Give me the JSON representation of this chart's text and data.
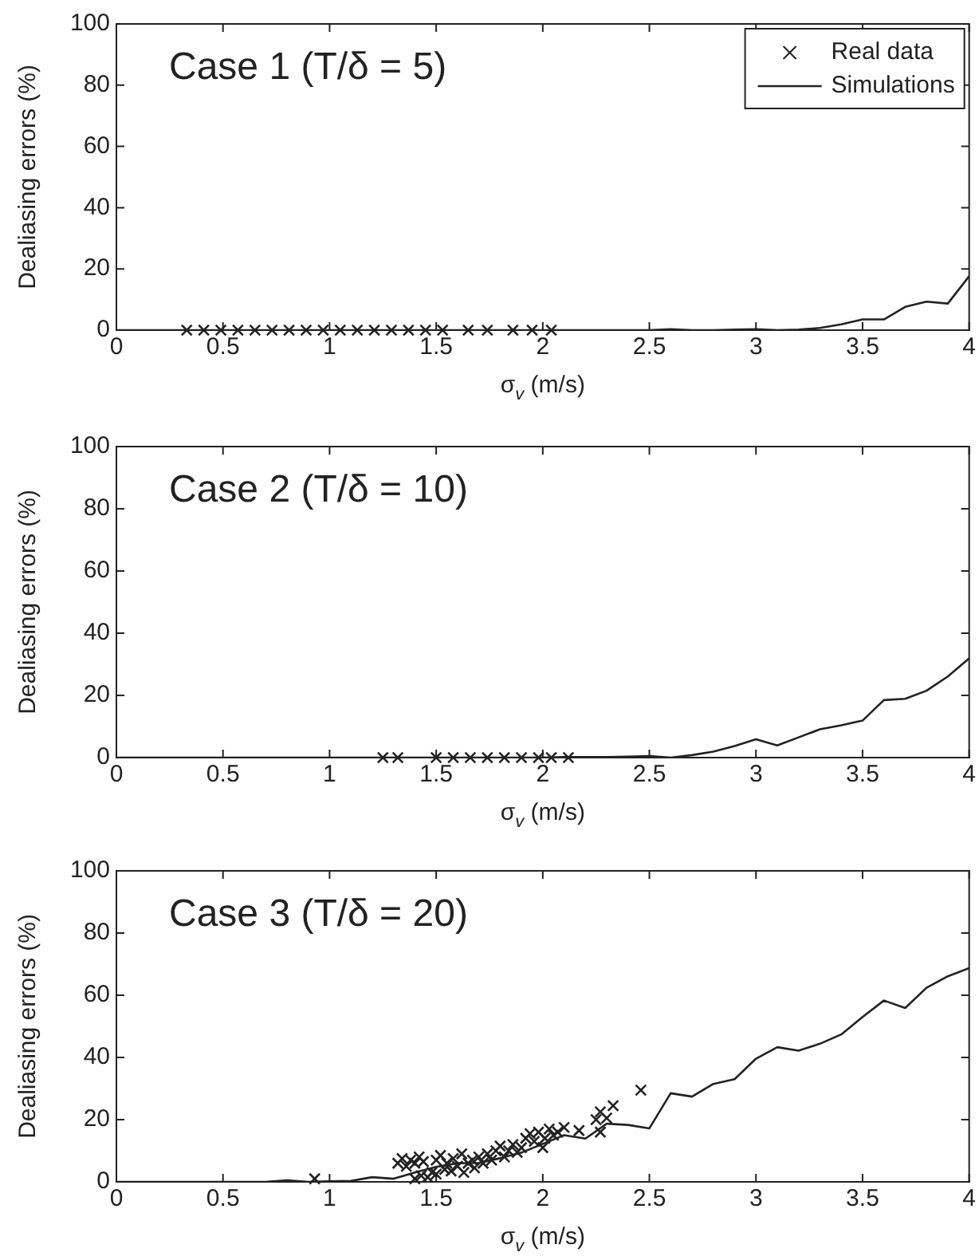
{
  "chart_data": [
    {
      "type": "scatter",
      "title": "Case 1 (T/δ = 5)",
      "xlabel": "σ$_{v}$ (m/s)",
      "ylabel": "Dealiasing errors (%)",
      "xlim": [
        0,
        4
      ],
      "xticks": [
        0,
        0.5,
        1,
        1.5,
        2,
        2.5,
        3,
        3.5,
        4
      ],
      "ylim": [
        0,
        100
      ],
      "yticks": [
        0,
        20,
        40,
        60,
        80,
        100
      ],
      "grid": false,
      "legend": "top right",
      "marker": "cross",
      "series": [
        {
          "name": "Real data",
          "type": "scatter",
          "color": "#222222",
          "x": [
            0.33,
            0.41,
            0.49,
            0.57,
            0.65,
            0.73,
            0.81,
            0.89,
            0.97,
            1.05,
            1.13,
            1.21,
            1.29,
            1.37,
            1.45,
            1.53,
            1.65,
            1.74,
            1.86,
            1.95,
            2.04
          ],
          "values": [
            0,
            0,
            0,
            0,
            0,
            0,
            0,
            0,
            0,
            0,
            0,
            0,
            0,
            0,
            0,
            0,
            0,
            0,
            0,
            0,
            0
          ]
        },
        {
          "name": "Simulations",
          "type": "line",
          "marker": "none",
          "color": "#222222",
          "x": [
            0,
            0.1,
            0.2,
            0.3,
            0.4,
            0.5,
            0.6,
            0.7,
            0.8,
            0.9,
            1,
            1.1,
            1.2,
            1.3,
            1.4,
            1.5,
            1.6,
            1.7,
            1.8,
            1.9,
            2,
            2.1,
            2.2,
            2.3,
            2.4,
            2.5,
            2.6,
            2.7,
            2.8,
            2.9,
            3,
            3.1,
            3.2,
            3.3,
            3.4,
            3.5,
            3.6,
            3.7,
            3.8,
            3.9,
            4
          ],
          "values": [
            0,
            0,
            0,
            0,
            0,
            0,
            0,
            0,
            0,
            0,
            0,
            0,
            0,
            0,
            0,
            0,
            0,
            0,
            0,
            0,
            0,
            0,
            0,
            0,
            0,
            0,
            0.3,
            0,
            0,
            0.2,
            0.3,
            0,
            0.2,
            0.7,
            1.9,
            3.5,
            3.5,
            7.6,
            9.3,
            8.7,
            17.6
          ]
        }
      ]
    },
    {
      "type": "scatter",
      "title": "Case 2 (T/δ = 10)",
      "xlabel": "σ$_{v}$ (m/s)",
      "ylabel": "Dealiasing errors (%)",
      "xlim": [
        0,
        4
      ],
      "xticks": [
        0,
        0.5,
        1,
        1.5,
        2,
        2.5,
        3,
        3.5,
        4
      ],
      "ylim": [
        0,
        100
      ],
      "yticks": [
        0,
        20,
        40,
        60,
        80,
        100
      ],
      "grid": false,
      "marker": "cross",
      "series": [
        {
          "type": "scatter",
          "color": "#222222",
          "x": [
            1.25,
            1.32,
            1.5,
            1.58,
            1.66,
            1.74,
            1.82,
            1.9,
            1.98,
            2.04,
            2.12
          ],
          "values": [
            0,
            0,
            0,
            0,
            0,
            0,
            0,
            0,
            0,
            0,
            0
          ]
        },
        {
          "type": "line",
          "marker": "none",
          "color": "#222222",
          "x": [
            0,
            0.1,
            0.2,
            0.3,
            0.4,
            0.5,
            0.6,
            0.7,
            0.8,
            0.9,
            1,
            1.1,
            1.2,
            1.3,
            1.4,
            1.5,
            1.6,
            1.7,
            1.8,
            1.9,
            2,
            2.1,
            2.2,
            2.3,
            2.4,
            2.5,
            2.6,
            2.7,
            2.8,
            2.9,
            3,
            3.1,
            3.2,
            3.3,
            3.4,
            3.5,
            3.6,
            3.7,
            3.8,
            3.9,
            4
          ],
          "values": [
            0,
            0,
            0,
            0,
            0,
            0,
            0,
            0,
            0,
            0,
            0,
            0,
            0,
            0,
            0,
            0,
            0,
            0,
            0,
            0,
            0,
            0.2,
            0.2,
            0.2,
            0.3,
            0.5,
            0,
            0.8,
            1.9,
            3.7,
            5.9,
            3.9,
            6.5,
            9.1,
            10.4,
            11.9,
            18.5,
            18.9,
            21.5,
            26.1,
            31.9
          ]
        }
      ]
    },
    {
      "type": "scatter",
      "title": "Case 3 (T/δ = 20)",
      "xlabel": "σ$_{v}$ (m/s)",
      "ylabel": "Dealiasing errors (%)",
      "xlim": [
        0,
        4
      ],
      "xticks": [
        0,
        0.5,
        1,
        1.5,
        2,
        2.5,
        3,
        3.5,
        4
      ],
      "ylim": [
        0,
        100
      ],
      "yticks": [
        0,
        20,
        40,
        60,
        80,
        100
      ],
      "grid": false,
      "marker": "cross",
      "series": [
        {
          "type": "scatter",
          "color": "#222222",
          "x": [
            0.93,
            1.32,
            1.34,
            1.36,
            1.38,
            1.4,
            1.42,
            1.44,
            1.4,
            1.43,
            1.46,
            1.48,
            1.5,
            1.5,
            1.52,
            1.54,
            1.55,
            1.57,
            1.58,
            1.6,
            1.62,
            1.63,
            1.65,
            1.67,
            1.68,
            1.7,
            1.72,
            1.74,
            1.76,
            1.78,
            1.8,
            1.82,
            1.84,
            1.86,
            1.88,
            1.9,
            1.92,
            1.94,
            1.96,
            1.98,
            2,
            2.01,
            2.03,
            2.05,
            2.07,
            2.1,
            2.17,
            2.25,
            2.27,
            2.27,
            2.3,
            2.33,
            2.46
          ],
          "values": [
            1,
            6,
            7.5,
            5,
            7,
            6,
            8,
            6.5,
            1,
            2,
            1.5,
            3,
            2.5,
            7,
            8.5,
            4,
            6,
            3.5,
            7.5,
            5,
            9,
            3,
            6,
            7,
            4.5,
            8,
            6,
            9,
            7,
            10,
            11.5,
            8,
            10,
            12,
            9.5,
            11,
            14,
            15.5,
            13,
            16,
            11,
            14,
            17,
            15,
            16,
            17.5,
            16.5,
            20,
            22.5,
            16,
            20.5,
            24.5,
            29.5
          ]
        },
        {
          "type": "line",
          "marker": "none",
          "color": "#222222",
          "x": [
            0,
            0.1,
            0.2,
            0.3,
            0.4,
            0.5,
            0.6,
            0.7,
            0.8,
            0.9,
            1,
            1.1,
            1.2,
            1.3,
            1.4,
            1.5,
            1.6,
            1.7,
            1.8,
            1.9,
            2,
            2.1,
            2.2,
            2.3,
            2.4,
            2.5,
            2.6,
            2.7,
            2.8,
            2.9,
            3,
            3.1,
            3.2,
            3.3,
            3.4,
            3.5,
            3.6,
            3.7,
            3.8,
            3.9,
            4
          ],
          "values": [
            0,
            0,
            0,
            0,
            0,
            0,
            0,
            0,
            0.5,
            0,
            0.2,
            0.3,
            1.5,
            1,
            3,
            4.8,
            6,
            6.1,
            7.6,
            9.4,
            12.2,
            15,
            13.9,
            18.7,
            18.3,
            17.2,
            28.5,
            27.4,
            31.5,
            33,
            39.6,
            43.3,
            42.2,
            44.4,
            47.4,
            53,
            58.3,
            55.9,
            62.4,
            66.1,
            68.7
          ]
        }
      ]
    }
  ]
}
